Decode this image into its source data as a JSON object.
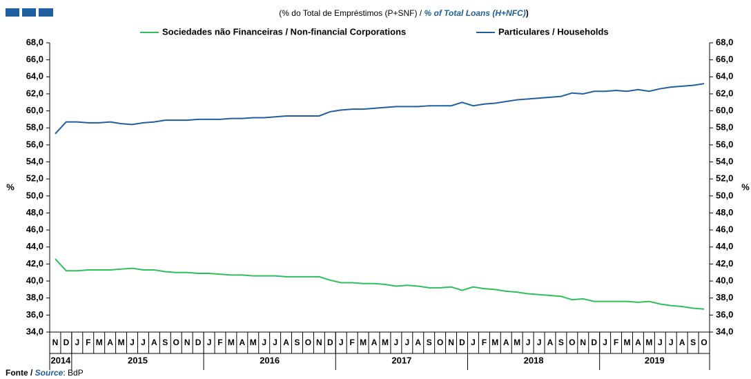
{
  "chart_data": {
    "type": "line",
    "title": "(% do Total de Empréstimos (P+SNF)  / ",
    "title_en": "% of Total Loans (H+NFC)",
    "title_end": ")",
    "ylabel": "%",
    "y2label": "%",
    "source_pt": "Fonte / ",
    "source_en": "Source",
    "source_rest": ": BdP",
    "categories": [
      "N",
      "D",
      "J",
      "F",
      "M",
      "A",
      "M",
      "J",
      "J",
      "A",
      "S",
      "O",
      "N",
      "D",
      "J",
      "F",
      "M",
      "A",
      "M",
      "J",
      "J",
      "A",
      "S",
      "O",
      "N",
      "D",
      "J",
      "F",
      "M",
      "A",
      "M",
      "J",
      "J",
      "A",
      "S",
      "O",
      "N",
      "D",
      "J",
      "F",
      "M",
      "A",
      "M",
      "J",
      "J",
      "A",
      "S",
      "O",
      "N",
      "D",
      "J",
      "F",
      "M",
      "A",
      "M",
      "J",
      "J",
      "A",
      "S",
      "O"
    ],
    "years": [
      "2014",
      "2015",
      "2016",
      "2017",
      "2018",
      "2019"
    ],
    "series": [
      {
        "name": "Sociedades não Financeiras / Non-financial Corporations",
        "color": "#2dbf5a",
        "values": [
          42.6,
          41.2,
          41.2,
          41.3,
          41.3,
          41.3,
          41.4,
          41.5,
          41.3,
          41.3,
          41.1,
          41.0,
          41.0,
          40.9,
          40.9,
          40.8,
          40.7,
          40.7,
          40.6,
          40.6,
          40.6,
          40.5,
          40.5,
          40.5,
          40.5,
          40.1,
          39.8,
          39.8,
          39.7,
          39.7,
          39.6,
          39.4,
          39.5,
          39.4,
          39.2,
          39.2,
          39.3,
          38.9,
          39.3,
          39.1,
          39.0,
          38.8,
          38.7,
          38.5,
          38.4,
          38.3,
          38.2,
          37.8,
          37.9,
          37.6,
          37.6,
          37.6,
          37.6,
          37.5,
          37.6,
          37.3,
          37.1,
          37.0,
          36.8,
          36.7
        ]
      },
      {
        "name": "Particulares / Households",
        "color": "#1f5fa0",
        "values": [
          57.3,
          58.7,
          58.7,
          58.6,
          58.6,
          58.7,
          58.5,
          58.4,
          58.6,
          58.7,
          58.9,
          58.9,
          58.9,
          59.0,
          59.0,
          59.0,
          59.1,
          59.1,
          59.2,
          59.2,
          59.3,
          59.4,
          59.4,
          59.4,
          59.4,
          59.9,
          60.1,
          60.2,
          60.2,
          60.3,
          60.4,
          60.5,
          60.5,
          60.5,
          60.6,
          60.6,
          60.6,
          61.0,
          60.6,
          60.8,
          60.9,
          61.1,
          61.3,
          61.4,
          61.5,
          61.6,
          61.7,
          62.1,
          62.0,
          62.3,
          62.3,
          62.4,
          62.3,
          62.5,
          62.3,
          62.6,
          62.8,
          62.9,
          63.0,
          63.2
        ]
      }
    ],
    "ylim": [
      34,
      68
    ],
    "yticks": [
      {
        "value": 34,
        "label": "34,0"
      },
      {
        "value": 36,
        "label": "36,0"
      },
      {
        "value": 38,
        "label": "38,0"
      },
      {
        "value": 40,
        "label": "40,0"
      },
      {
        "value": 42,
        "label": "42,0"
      },
      {
        "value": 44,
        "label": "44,0"
      },
      {
        "value": 46,
        "label": "46,0"
      },
      {
        "value": 48,
        "label": "48,0"
      },
      {
        "value": 50,
        "label": "50,0"
      },
      {
        "value": 52,
        "label": "52,0"
      },
      {
        "value": 54,
        "label": "54,0"
      },
      {
        "value": 56,
        "label": "56,0"
      },
      {
        "value": 58,
        "label": "58,0"
      },
      {
        "value": 60,
        "label": "60,0"
      },
      {
        "value": 62,
        "label": "62,0"
      },
      {
        "value": 64,
        "label": "64,0"
      },
      {
        "value": 66,
        "label": "66,0"
      },
      {
        "value": 68,
        "label": "68,0"
      }
    ],
    "y2lim": [
      34,
      68
    ],
    "y2ticks": [
      {
        "value": 34,
        "label": "34,0"
      },
      {
        "value": 36,
        "label": "36,0"
      },
      {
        "value": 38,
        "label": "38,0"
      },
      {
        "value": 40,
        "label": "40,0"
      },
      {
        "value": 42,
        "label": "42,0"
      },
      {
        "value": 44,
        "label": "44,0"
      },
      {
        "value": 46,
        "label": "46,0"
      },
      {
        "value": 48,
        "label": "48,0"
      },
      {
        "value": 50,
        "label": "50,0"
      },
      {
        "value": 52,
        "label": "52,0"
      },
      {
        "value": 54,
        "label": "54,0"
      },
      {
        "value": 56,
        "label": "56,0"
      },
      {
        "value": 58,
        "label": "58,0"
      },
      {
        "value": 60,
        "label": "60,0"
      },
      {
        "value": 62,
        "label": "62,0"
      },
      {
        "value": 64,
        "label": "64,0"
      },
      {
        "value": 66,
        "label": "66,0"
      },
      {
        "value": 68,
        "label": "68,0"
      }
    ],
    "grid": false
  }
}
